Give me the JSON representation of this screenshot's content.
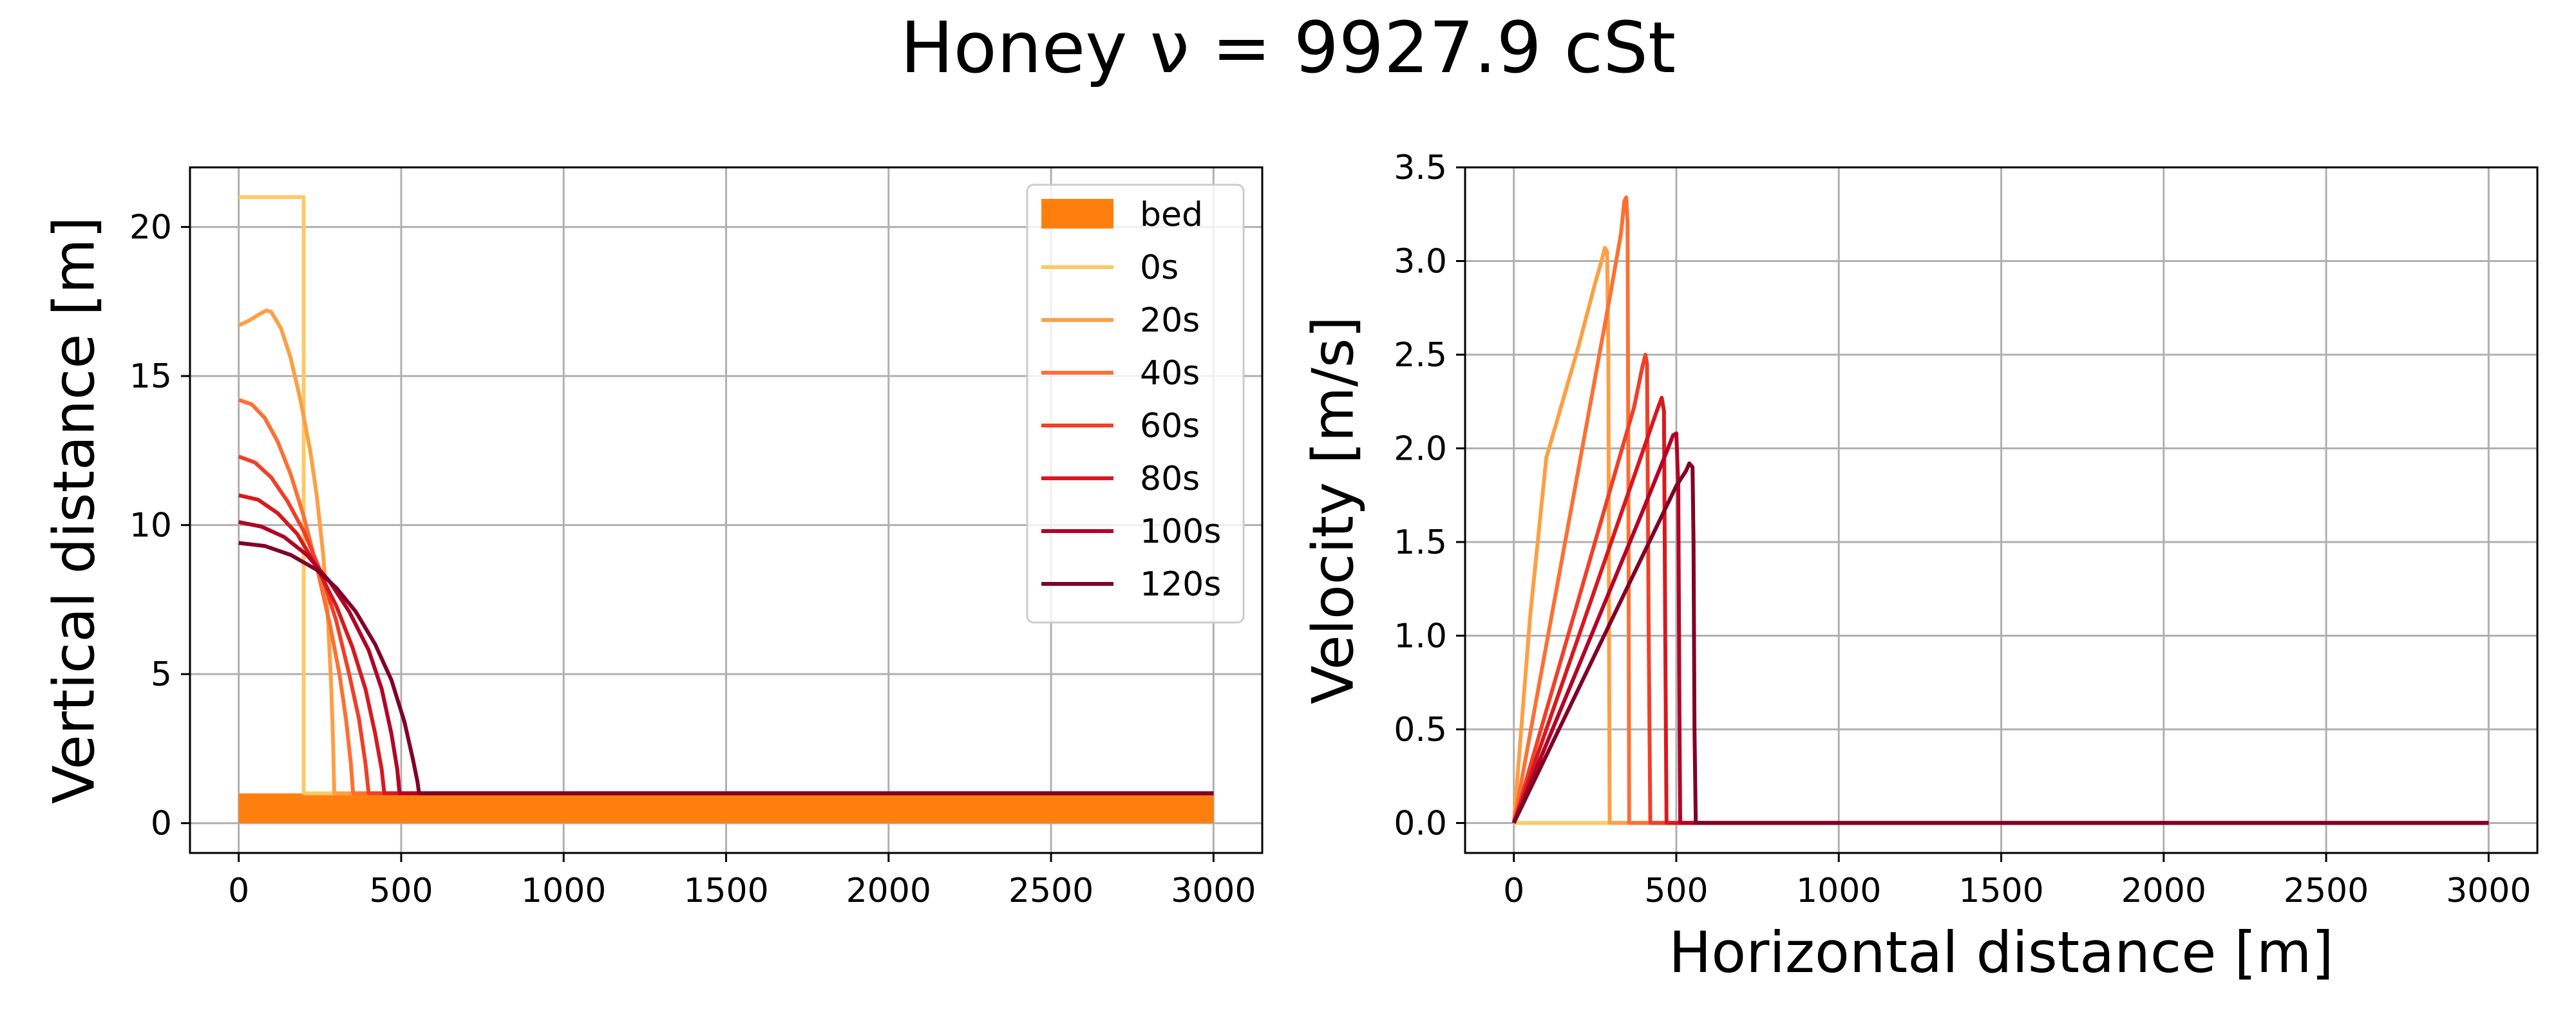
{
  "figure": {
    "suptitle": "Honey ν = 9927.9 cSt"
  },
  "colors": {
    "bed": "#ff7f0e",
    "grid": "#b0b0b0",
    "axes": "#000000",
    "series": [
      "#fec965",
      "#fd9f44",
      "#fc7034",
      "#f04028",
      "#d7191f",
      "#b40326",
      "#800026"
    ]
  },
  "chart_data": [
    {
      "type": "line",
      "id": "height",
      "title": "",
      "xlabel": "",
      "ylabel": "Vertical distance [m]",
      "xlim": [
        -150,
        3150
      ],
      "ylim": [
        -1,
        22
      ],
      "xticks": [
        0,
        500,
        1000,
        1500,
        2000,
        2500,
        3000
      ],
      "yticks": [
        0,
        5,
        10,
        15,
        20
      ],
      "grid": true,
      "legend": {
        "placement": "top-right",
        "entries": [
          "bed",
          "0s",
          "20s",
          "40s",
          "60s",
          "80s",
          "100s",
          "120s"
        ]
      },
      "bed": {
        "name": "bed",
        "x": [
          0,
          3000
        ],
        "y": [
          0,
          1
        ]
      },
      "series": [
        {
          "name": "0s",
          "points": [
            [
              0,
              21
            ],
            [
              200,
              21
            ],
            [
              200,
              1
            ],
            [
              3000,
              1
            ]
          ]
        },
        {
          "name": "20s",
          "points": [
            [
              0,
              16.7
            ],
            [
              30,
              16.85
            ],
            [
              60,
              17.05
            ],
            [
              85,
              17.2
            ],
            [
              100,
              17.15
            ],
            [
              130,
              16.6
            ],
            [
              160,
              15.6
            ],
            [
              190,
              14.2
            ],
            [
              220,
              12.5
            ],
            [
              240,
              11
            ],
            [
              260,
              9
            ],
            [
              275,
              6.8
            ],
            [
              285,
              4.5
            ],
            [
              291,
              2.5
            ],
            [
              294,
              1
            ],
            [
              3000,
              1
            ]
          ]
        },
        {
          "name": "40s",
          "points": [
            [
              0,
              14.2
            ],
            [
              40,
              14.05
            ],
            [
              80,
              13.6
            ],
            [
              120,
              12.8
            ],
            [
              160,
              11.7
            ],
            [
              200,
              10.3
            ],
            [
              240,
              8.6
            ],
            [
              280,
              6.7
            ],
            [
              310,
              5
            ],
            [
              330,
              3.5
            ],
            [
              345,
              2
            ],
            [
              352,
              1
            ],
            [
              3000,
              1
            ]
          ]
        },
        {
          "name": "60s",
          "points": [
            [
              0,
              12.3
            ],
            [
              50,
              12.1
            ],
            [
              100,
              11.6
            ],
            [
              150,
              10.8
            ],
            [
              200,
              9.8
            ],
            [
              250,
              8.5
            ],
            [
              300,
              6.8
            ],
            [
              340,
              5
            ],
            [
              370,
              3.5
            ],
            [
              390,
              2
            ],
            [
              400,
              1
            ],
            [
              3000,
              1
            ]
          ]
        },
        {
          "name": "80s",
          "points": [
            [
              0,
              11
            ],
            [
              60,
              10.85
            ],
            [
              120,
              10.4
            ],
            [
              180,
              9.7
            ],
            [
              240,
              8.6
            ],
            [
              300,
              7.3
            ],
            [
              350,
              5.9
            ],
            [
              390,
              4.5
            ],
            [
              420,
              3
            ],
            [
              440,
              1.8
            ],
            [
              448,
              1
            ],
            [
              3000,
              1
            ]
          ]
        },
        {
          "name": "100s",
          "points": [
            [
              0,
              10.1
            ],
            [
              70,
              9.95
            ],
            [
              140,
              9.6
            ],
            [
              210,
              9
            ],
            [
              280,
              8.1
            ],
            [
              340,
              7.1
            ],
            [
              400,
              5.8
            ],
            [
              440,
              4.5
            ],
            [
              470,
              3
            ],
            [
              488,
              1.8
            ],
            [
              495,
              1
            ],
            [
              3000,
              1
            ]
          ]
        },
        {
          "name": "120s",
          "points": [
            [
              0,
              9.4
            ],
            [
              80,
              9.3
            ],
            [
              160,
              9
            ],
            [
              240,
              8.5
            ],
            [
              300,
              7.9
            ],
            [
              360,
              7.1
            ],
            [
              420,
              6
            ],
            [
              470,
              4.8
            ],
            [
              510,
              3.4
            ],
            [
              535,
              2.2
            ],
            [
              550,
              1.4
            ],
            [
              555,
              1
            ],
            [
              3000,
              1
            ]
          ]
        }
      ]
    },
    {
      "type": "line",
      "id": "velocity",
      "title": "",
      "xlabel": "Horizontal distance [m]",
      "ylabel": "Velocity [m/s]",
      "xlim": [
        -150,
        3150
      ],
      "ylim": [
        -0.16,
        3.5
      ],
      "xticks": [
        0,
        500,
        1000,
        1500,
        2000,
        2500,
        3000
      ],
      "yticks": [
        0.0,
        0.5,
        1.0,
        1.5,
        2.0,
        2.5,
        3.0,
        3.5
      ],
      "grid": true,
      "series": [
        {
          "name": "0s",
          "points": [
            [
              0,
              0
            ],
            [
              3000,
              0
            ]
          ]
        },
        {
          "name": "20s",
          "points": [
            [
              0,
              0
            ],
            [
              50,
              1.1
            ],
            [
              100,
              1.95
            ],
            [
              150,
              2.25
            ],
            [
              200,
              2.55
            ],
            [
              250,
              2.88
            ],
            [
              270,
              3.0
            ],
            [
              280,
              3.07
            ],
            [
              287,
              3.05
            ],
            [
              291,
              2.5
            ],
            [
              293,
              1.0
            ],
            [
              295,
              0
            ],
            [
              3000,
              0
            ]
          ]
        },
        {
          "name": "40s",
          "points": [
            [
              0,
              0
            ],
            [
              100,
              0.95
            ],
            [
              200,
              1.9
            ],
            [
              300,
              2.85
            ],
            [
              330,
              3.15
            ],
            [
              340,
              3.32
            ],
            [
              346,
              3.34
            ],
            [
              350,
              3.2
            ],
            [
              353,
              1.5
            ],
            [
              355,
              0
            ],
            [
              3000,
              0
            ]
          ]
        },
        {
          "name": "60s",
          "points": [
            [
              0,
              0
            ],
            [
              100,
              0.6
            ],
            [
              200,
              1.2
            ],
            [
              300,
              1.8
            ],
            [
              370,
              2.22
            ],
            [
              395,
              2.43
            ],
            [
              405,
              2.5
            ],
            [
              410,
              2.45
            ],
            [
              415,
              1.0
            ],
            [
              420,
              0
            ],
            [
              3000,
              0
            ]
          ]
        },
        {
          "name": "80s",
          "points": [
            [
              0,
              0
            ],
            [
              100,
              0.5
            ],
            [
              200,
              1.0
            ],
            [
              300,
              1.5
            ],
            [
              400,
              2.0
            ],
            [
              440,
              2.2
            ],
            [
              455,
              2.27
            ],
            [
              462,
              2.2
            ],
            [
              466,
              1.0
            ],
            [
              470,
              0
            ],
            [
              3000,
              0
            ]
          ]
        },
        {
          "name": "100s",
          "points": [
            [
              0,
              0
            ],
            [
              100,
              0.42
            ],
            [
              200,
              0.84
            ],
            [
              300,
              1.26
            ],
            [
              400,
              1.68
            ],
            [
              470,
              1.98
            ],
            [
              490,
              2.07
            ],
            [
              500,
              2.08
            ],
            [
              506,
              1.8
            ],
            [
              510,
              0.5
            ],
            [
              512,
              0
            ],
            [
              3000,
              0
            ]
          ]
        },
        {
          "name": "120s",
          "points": [
            [
              0,
              0
            ],
            [
              100,
              0.36
            ],
            [
              200,
              0.72
            ],
            [
              300,
              1.08
            ],
            [
              400,
              1.44
            ],
            [
              500,
              1.8
            ],
            [
              530,
              1.88
            ],
            [
              540,
              1.92
            ],
            [
              550,
              1.9
            ],
            [
              553,
              1.5
            ],
            [
              556,
              0.5
            ],
            [
              560,
              0
            ],
            [
              3000,
              0
            ]
          ]
        }
      ]
    }
  ]
}
